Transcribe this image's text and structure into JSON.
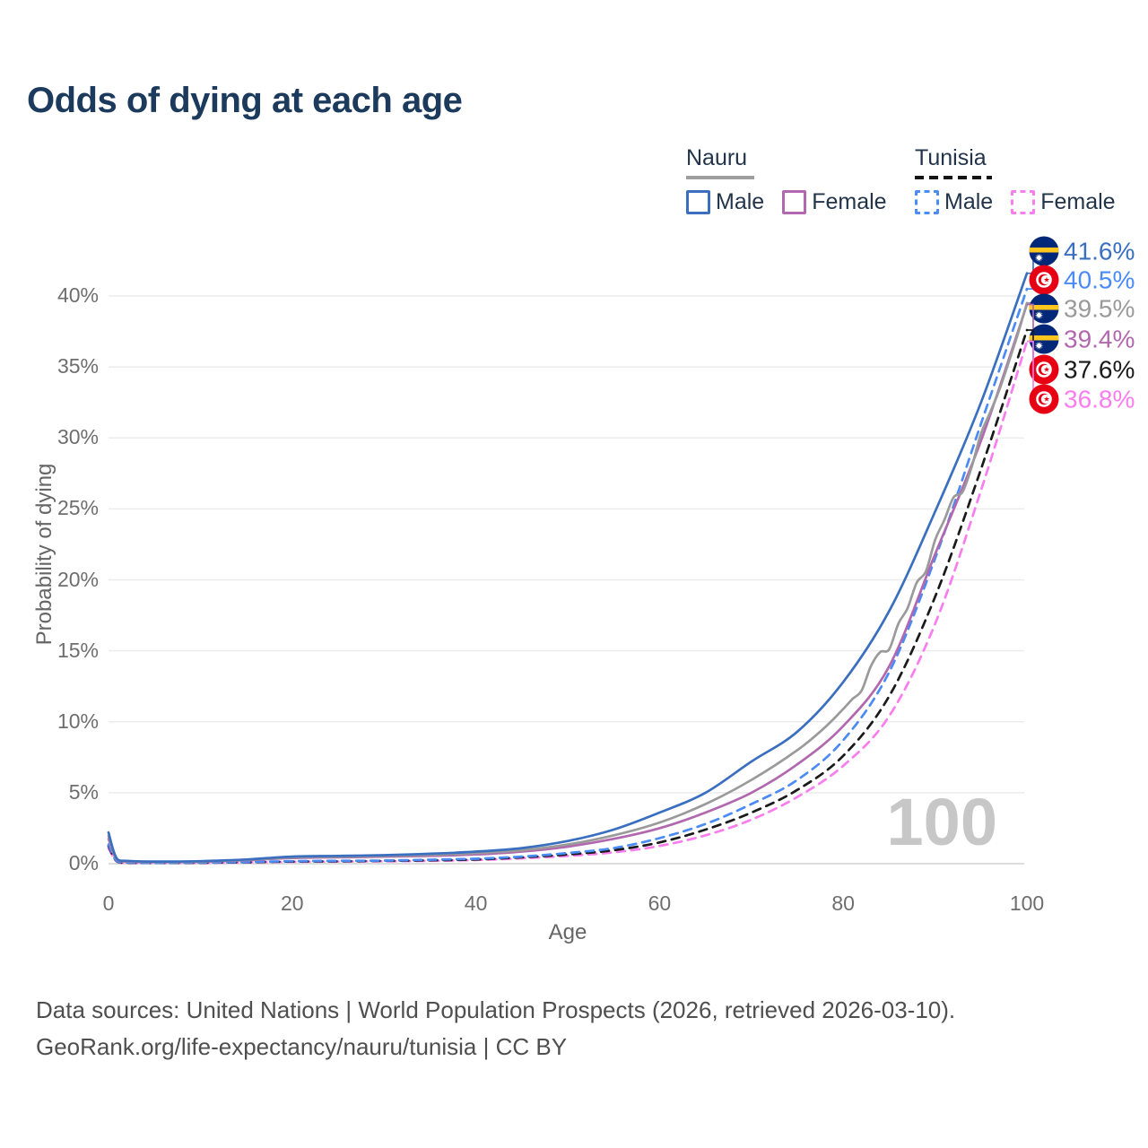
{
  "title": "Odds of dying at each age",
  "watermark": "100",
  "legend": {
    "groups": [
      {
        "label": "Nauru",
        "line_style": "solid",
        "underline_color": "#9e9e9e",
        "items": [
          {
            "label": "Male",
            "color": "#3a6fc0",
            "dashed": false
          },
          {
            "label": "Female",
            "color": "#b168ae",
            "dashed": false
          }
        ]
      },
      {
        "label": "Tunisia",
        "line_style": "dashed",
        "underline_color": "#141414",
        "items": [
          {
            "label": "Male",
            "color": "#4a8bf5",
            "dashed": true
          },
          {
            "label": "Female",
            "color": "#f97def",
            "dashed": true
          }
        ]
      }
    ]
  },
  "footer": {
    "line1": "Data sources: United Nations | World Population Prospects (2026, retrieved 2026-03-10).",
    "line2": "GeoRank.org/life-expectancy/nauru/tunisia | CC BY"
  },
  "flag_colors": {
    "nauru_blue": "#012878",
    "nauru_yellow": "#ffc61e",
    "tunisia_red": "#e70013",
    "white": "#ffffff"
  },
  "chart_data": {
    "type": "line",
    "title": "Odds of dying at each age",
    "xlabel": "Age",
    "ylabel": "Probability of dying",
    "xlim": [
      0,
      100
    ],
    "ylim": [
      0,
      44
    ],
    "x_ticks": [
      0,
      20,
      40,
      60,
      80,
      100
    ],
    "y_ticks": [
      0,
      5,
      10,
      15,
      20,
      25,
      30,
      35,
      40
    ],
    "y_unit": "%",
    "grid": "horizontal",
    "legend_position": "top-right",
    "hover_age": 100,
    "series": [
      {
        "name": "Tunisia Female",
        "country": "Tunisia",
        "sex": "Female",
        "color": "#f97def",
        "dash": "dashed",
        "end_value_pct": 36.8,
        "x": [
          0,
          0.5,
          1,
          2,
          5,
          10,
          15,
          20,
          25,
          30,
          35,
          40,
          45,
          50,
          55,
          60,
          65,
          70,
          75,
          80,
          85,
          90,
          95,
          100
        ],
        "y": [
          1.1,
          0.5,
          0.12,
          0.06,
          0.05,
          0.06,
          0.09,
          0.13,
          0.15,
          0.17,
          0.2,
          0.26,
          0.38,
          0.55,
          0.8,
          1.25,
          2.0,
          3.1,
          4.7,
          6.9,
          10.4,
          16.9,
          26.3,
          36.8
        ]
      },
      {
        "name": "Tunisia Both sexes",
        "country": "Tunisia",
        "sex": "Both",
        "color": "#1a1a1a",
        "dash": "dashed",
        "end_value_pct": 37.6,
        "x": [
          0,
          0.5,
          1,
          2,
          5,
          10,
          15,
          20,
          25,
          30,
          35,
          40,
          45,
          50,
          55,
          60,
          65,
          70,
          75,
          80,
          85,
          90,
          95,
          100
        ],
        "y": [
          1.25,
          0.55,
          0.13,
          0.07,
          0.055,
          0.07,
          0.1,
          0.15,
          0.17,
          0.2,
          0.24,
          0.3,
          0.45,
          0.65,
          0.95,
          1.5,
          2.4,
          3.6,
          5.2,
          7.6,
          11.8,
          18.8,
          27.8,
          37.6
        ]
      },
      {
        "name": "Tunisia Male",
        "country": "Tunisia",
        "sex": "Male",
        "color": "#4a8bf5",
        "dash": "dashed",
        "end_value_pct": 40.5,
        "x": [
          0,
          0.5,
          1,
          2,
          5,
          10,
          15,
          20,
          25,
          30,
          35,
          40,
          45,
          50,
          55,
          60,
          65,
          70,
          75,
          80,
          85,
          90,
          95,
          100
        ],
        "y": [
          1.35,
          0.6,
          0.15,
          0.08,
          0.06,
          0.08,
          0.12,
          0.18,
          0.2,
          0.22,
          0.28,
          0.35,
          0.5,
          0.75,
          1.1,
          1.8,
          2.8,
          4.2,
          5.9,
          8.7,
          13.5,
          21.5,
          31.0,
          40.5
        ]
      },
      {
        "name": "Nauru Female",
        "country": "Nauru",
        "sex": "Female",
        "color": "#b168ae",
        "dash": "solid",
        "end_value_pct": 39.4,
        "x": [
          0,
          0.5,
          1,
          2,
          5,
          10,
          15,
          20,
          25,
          30,
          35,
          40,
          45,
          50,
          55,
          60,
          65,
          70,
          75,
          80,
          85,
          90,
          95,
          100
        ],
        "y": [
          1.75,
          0.8,
          0.25,
          0.15,
          0.12,
          0.14,
          0.24,
          0.4,
          0.45,
          0.5,
          0.55,
          0.65,
          0.85,
          1.2,
          1.75,
          2.5,
          3.6,
          5.0,
          7.0,
          9.7,
          13.9,
          21.8,
          29.8,
          39.4
        ]
      },
      {
        "name": "Nauru Both sexes",
        "country": "Nauru",
        "sex": "Both",
        "color": "#9a9a9a",
        "dash": "solid",
        "end_value_pct": 39.5,
        "x": [
          0,
          0.5,
          1,
          2,
          5,
          10,
          15,
          20,
          25,
          30,
          35,
          40,
          45,
          50,
          55,
          60,
          65,
          70,
          75,
          78,
          80,
          81,
          82,
          83,
          84,
          85,
          86,
          87,
          88,
          89,
          90,
          91,
          92,
          93,
          94,
          95,
          96,
          97,
          98,
          99,
          100
        ],
        "y": [
          1.95,
          0.9,
          0.28,
          0.18,
          0.13,
          0.16,
          0.27,
          0.45,
          0.5,
          0.55,
          0.62,
          0.75,
          0.95,
          1.35,
          2.0,
          2.9,
          4.2,
          5.9,
          8.0,
          9.6,
          10.9,
          11.6,
          12.2,
          13.9,
          14.9,
          15.1,
          16.9,
          18.0,
          19.8,
          20.6,
          22.8,
          24.2,
          25.8,
          26.2,
          28.0,
          30.3,
          31.8,
          33.4,
          35.3,
          37.3,
          39.5
        ]
      },
      {
        "name": "Nauru Male",
        "country": "Nauru",
        "sex": "Male",
        "color": "#3a6fc0",
        "dash": "solid",
        "end_value_pct": 41.6,
        "x": [
          0,
          0.5,
          1,
          2,
          5,
          10,
          15,
          20,
          25,
          30,
          35,
          40,
          45,
          50,
          55,
          60,
          65,
          70,
          75,
          80,
          85,
          90,
          95,
          100
        ],
        "y": [
          2.2,
          1.0,
          0.3,
          0.2,
          0.15,
          0.18,
          0.3,
          0.5,
          0.55,
          0.6,
          0.7,
          0.85,
          1.1,
          1.6,
          2.4,
          3.6,
          5.0,
          7.2,
          9.3,
          12.8,
          17.8,
          24.8,
          32.5,
          41.6
        ]
      }
    ],
    "end_labels": [
      {
        "value": "41.6%",
        "flag": "nauru",
        "color": "#3a6fc0",
        "series": "Nauru Male"
      },
      {
        "value": "40.5%",
        "flag": "tunisia",
        "color": "#4a8bf5",
        "series": "Tunisia Male"
      },
      {
        "value": "39.5%",
        "flag": "nauru",
        "color": "#9a9a9a",
        "series": "Nauru Both sexes"
      },
      {
        "value": "39.4%",
        "flag": "nauru",
        "color": "#b168ae",
        "series": "Nauru Female"
      },
      {
        "value": "37.6%",
        "flag": "tunisia",
        "color": "#1a1a1a",
        "series": "Tunisia Both sexes"
      },
      {
        "value": "36.8%",
        "flag": "tunisia",
        "color": "#f97def",
        "series": "Tunisia Female"
      }
    ]
  }
}
